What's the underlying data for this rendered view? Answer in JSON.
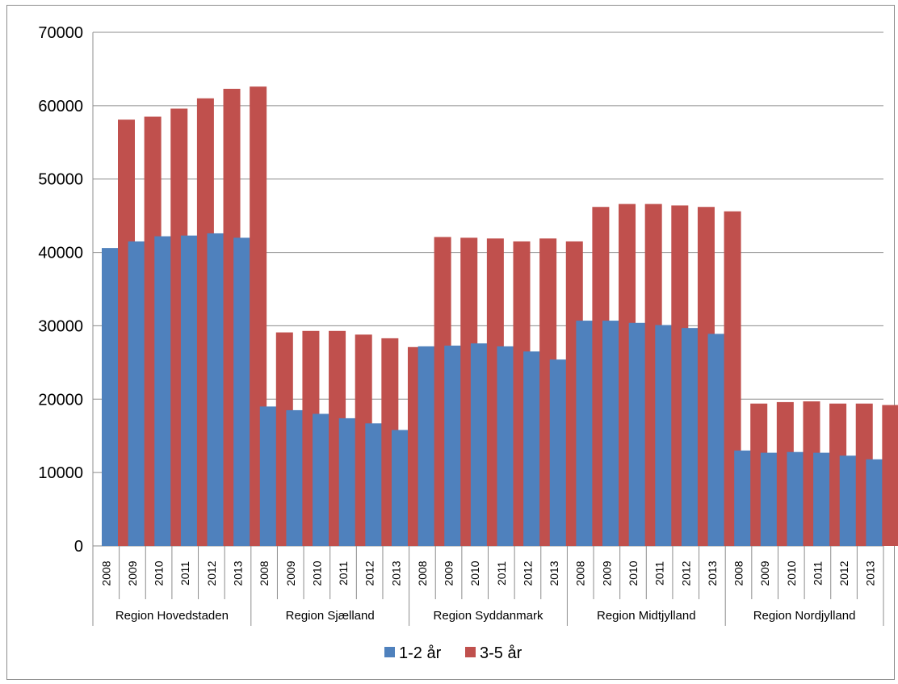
{
  "chart_data": {
    "type": "bar",
    "title": "",
    "xlabel": "",
    "ylabel": "",
    "ylim": [
      0,
      70000
    ],
    "yticks": [
      0,
      10000,
      20000,
      30000,
      40000,
      50000,
      60000,
      70000
    ],
    "grid": true,
    "legend_position": "bottom",
    "groups": [
      "Region Hovedstaden",
      "Region Sjælland",
      "Region Syddanmark",
      "Region Midtjylland",
      "Region Nordjylland"
    ],
    "years": [
      "2008",
      "2009",
      "2010",
      "2011",
      "2012",
      "2013"
    ],
    "series": [
      {
        "name": "1-2 år",
        "color": "#4f81bd",
        "values": [
          40600,
          41500,
          42200,
          42300,
          42600,
          42000,
          19000,
          18500,
          18000,
          17400,
          16700,
          15800,
          27200,
          27300,
          27600,
          27200,
          26500,
          25400,
          30700,
          30700,
          30400,
          30100,
          29700,
          28900,
          13000,
          12700,
          12800,
          12700,
          12300,
          11800
        ]
      },
      {
        "name": "3-5 år",
        "color": "#c0504d",
        "values": [
          58100,
          58500,
          59600,
          61000,
          62300,
          62600,
          29100,
          29300,
          29300,
          28800,
          28300,
          27100,
          42100,
          42000,
          41900,
          41500,
          41900,
          41500,
          46200,
          46600,
          46600,
          46400,
          46200,
          45600,
          19400,
          19600,
          19700,
          19400,
          19400,
          19200
        ]
      }
    ]
  }
}
